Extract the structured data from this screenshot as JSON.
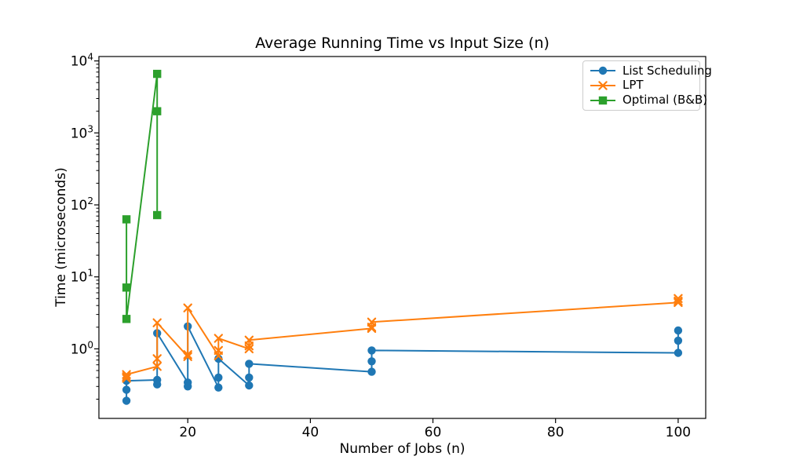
{
  "figure": {
    "background": "#ffffff",
    "text_color": "#000000"
  },
  "chart_data": {
    "type": "line",
    "title": "Average Running Time vs Input Size (n)",
    "xlabel": "Number of Jobs (n)",
    "ylabel": "Time (microseconds)",
    "xlim": [
      5.5,
      104.5
    ],
    "ylim": [
      0.108,
      11500
    ],
    "yscale": "log",
    "xscale": "linear",
    "grid": false,
    "legend_position": "upper right",
    "xticks": [
      20,
      40,
      60,
      80,
      100
    ],
    "ytick_base": "10",
    "ytick_exponents": [
      0,
      1,
      2,
      3,
      4
    ],
    "series": [
      {
        "name": "List Scheduling",
        "color": "#1f77b4",
        "marker": "circle",
        "x": [
          10,
          10,
          10,
          15,
          15,
          15,
          20,
          20,
          20,
          25,
          25,
          25,
          30,
          30,
          30,
          50,
          50,
          50,
          100,
          100,
          100
        ],
        "y": [
          0.19,
          0.27,
          0.36,
          0.37,
          0.32,
          1.65,
          0.34,
          0.3,
          2.05,
          0.29,
          0.4,
          0.73,
          0.31,
          0.4,
          0.62,
          0.48,
          0.67,
          0.95,
          0.88,
          1.3,
          1.8
        ]
      },
      {
        "name": "LPT",
        "color": "#ff7f0e",
        "marker": "x",
        "x": [
          10,
          10,
          10,
          15,
          15,
          15,
          20,
          20,
          20,
          25,
          25,
          25,
          30,
          30,
          30,
          50,
          50,
          50,
          100,
          100,
          100
        ],
        "y": [
          0.39,
          0.41,
          0.44,
          0.57,
          0.73,
          2.3,
          0.78,
          0.83,
          3.7,
          0.8,
          0.95,
          1.4,
          1.0,
          1.1,
          1.32,
          1.92,
          2.0,
          2.35,
          4.4,
          4.6,
          5.0
        ]
      },
      {
        "name": "Optimal (B&B)",
        "color": "#2ca02c",
        "marker": "square",
        "x": [
          10,
          10,
          10,
          15,
          15,
          15
        ],
        "y": [
          63,
          7.1,
          2.6,
          6600,
          2000,
          72
        ]
      }
    ]
  }
}
